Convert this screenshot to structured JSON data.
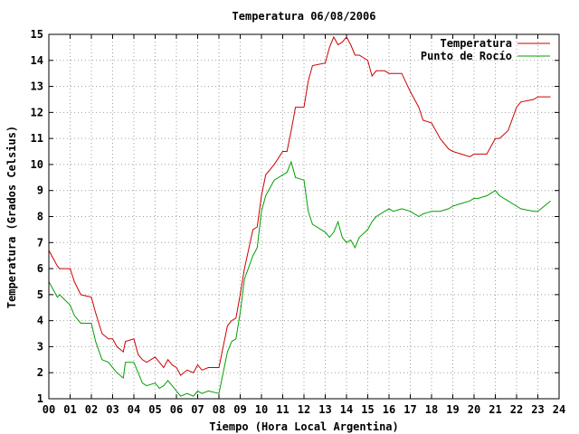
{
  "chart_data": {
    "type": "line",
    "title": "Temperatura 06/08/2006",
    "xlabel": "Tiempo (Hora Local Argentina)",
    "ylabel": "Temperatura (Grados Celsius)",
    "xlim": [
      0,
      24
    ],
    "ylim": [
      1,
      15
    ],
    "x_ticks": [
      0,
      1,
      2,
      3,
      4,
      5,
      6,
      7,
      8,
      9,
      10,
      11,
      12,
      13,
      14,
      15,
      16,
      17,
      18,
      19,
      20,
      21,
      22,
      23,
      24
    ],
    "x_tick_labels": [
      "00",
      "01",
      "02",
      "03",
      "04",
      "05",
      "06",
      "07",
      "08",
      "09",
      "10",
      "11",
      "12",
      "13",
      "14",
      "15",
      "16",
      "17",
      "18",
      "19",
      "20",
      "21",
      "22",
      "23",
      "24"
    ],
    "y_ticks": [
      1,
      2,
      3,
      4,
      5,
      6,
      7,
      8,
      9,
      10,
      11,
      12,
      13,
      14,
      15
    ],
    "grid": true,
    "legend_position": "top-right",
    "series": [
      {
        "name": "Temperatura",
        "color": "#cc0000",
        "x": [
          0.0,
          0.2,
          0.4,
          0.5,
          1.0,
          1.2,
          1.5,
          2.0,
          2.2,
          2.5,
          2.8,
          3.0,
          3.2,
          3.5,
          3.6,
          4.0,
          4.2,
          4.4,
          4.6,
          5.0,
          5.2,
          5.4,
          5.6,
          5.8,
          6.0,
          6.2,
          6.5,
          6.8,
          7.0,
          7.2,
          7.5,
          8.0,
          8.2,
          8.4,
          8.6,
          8.8,
          9.0,
          9.2,
          9.6,
          9.8,
          10.0,
          10.2,
          10.6,
          11.0,
          11.2,
          11.4,
          11.6,
          12.0,
          12.2,
          12.4,
          13.0,
          13.2,
          13.4,
          13.6,
          13.8,
          14.0,
          14.2,
          14.4,
          14.6,
          15.0,
          15.2,
          15.4,
          15.8,
          16.0,
          16.2,
          16.6,
          17.0,
          17.4,
          17.6,
          18.0,
          18.4,
          18.8,
          19.0,
          19.4,
          19.8,
          20.0,
          20.2,
          20.6,
          21.0,
          21.2,
          21.6,
          22.0,
          22.2,
          22.8,
          23.0,
          23.6
        ],
        "y": [
          6.7,
          6.4,
          6.1,
          6.0,
          6.0,
          5.5,
          5.0,
          4.9,
          4.3,
          3.5,
          3.3,
          3.3,
          3.0,
          2.8,
          3.2,
          3.3,
          2.7,
          2.5,
          2.4,
          2.6,
          2.4,
          2.2,
          2.5,
          2.3,
          2.2,
          1.9,
          2.1,
          2.0,
          2.3,
          2.1,
          2.2,
          2.2,
          3.0,
          3.8,
          4.0,
          4.1,
          5.0,
          6.0,
          7.5,
          7.6,
          8.8,
          9.6,
          10.0,
          10.5,
          10.5,
          11.3,
          12.2,
          12.2,
          13.2,
          13.8,
          13.9,
          14.5,
          14.9,
          14.6,
          14.7,
          14.9,
          14.6,
          14.2,
          14.2,
          14.0,
          13.4,
          13.6,
          13.6,
          13.5,
          13.5,
          13.5,
          12.8,
          12.2,
          11.7,
          11.6,
          11.0,
          10.6,
          10.5,
          10.4,
          10.3,
          10.4,
          10.4,
          10.4,
          11.0,
          11.0,
          11.3,
          12.2,
          12.4,
          12.5,
          12.6,
          12.6
        ]
      },
      {
        "name": "Punto de Rocío",
        "color": "#00a000",
        "x": [
          0.0,
          0.2,
          0.4,
          0.5,
          1.0,
          1.2,
          1.5,
          2.0,
          2.2,
          2.5,
          2.8,
          3.0,
          3.2,
          3.5,
          3.6,
          4.0,
          4.2,
          4.4,
          4.6,
          5.0,
          5.2,
          5.4,
          5.6,
          5.8,
          6.0,
          6.2,
          6.5,
          6.8,
          7.0,
          7.2,
          7.5,
          8.0,
          8.2,
          8.4,
          8.6,
          8.8,
          9.0,
          9.2,
          9.6,
          9.8,
          10.0,
          10.2,
          10.6,
          11.0,
          11.2,
          11.4,
          11.6,
          12.0,
          12.2,
          12.4,
          13.0,
          13.2,
          13.4,
          13.6,
          13.8,
          14.0,
          14.2,
          14.4,
          14.6,
          15.0,
          15.2,
          15.4,
          15.8,
          16.0,
          16.2,
          16.6,
          17.0,
          17.4,
          17.6,
          18.0,
          18.4,
          18.8,
          19.0,
          19.4,
          19.8,
          20.0,
          20.2,
          20.6,
          21.0,
          21.2,
          21.6,
          22.0,
          22.2,
          22.8,
          23.0,
          23.6
        ],
        "y": [
          5.5,
          5.2,
          4.9,
          5.0,
          4.6,
          4.2,
          3.9,
          3.9,
          3.2,
          2.5,
          2.4,
          2.2,
          2.0,
          1.8,
          2.4,
          2.4,
          2.0,
          1.6,
          1.5,
          1.6,
          1.4,
          1.5,
          1.7,
          1.5,
          1.3,
          1.1,
          1.2,
          1.1,
          1.3,
          1.2,
          1.3,
          1.2,
          2.0,
          2.8,
          3.2,
          3.3,
          4.3,
          5.6,
          6.5,
          6.8,
          8.2,
          8.8,
          9.4,
          9.6,
          9.7,
          10.1,
          9.5,
          9.4,
          8.2,
          7.7,
          7.4,
          7.2,
          7.4,
          7.8,
          7.2,
          7.0,
          7.1,
          6.8,
          7.2,
          7.5,
          7.8,
          8.0,
          8.2,
          8.3,
          8.2,
          8.3,
          8.2,
          8.0,
          8.1,
          8.2,
          8.2,
          8.3,
          8.4,
          8.5,
          8.6,
          8.7,
          8.7,
          8.8,
          9.0,
          8.8,
          8.6,
          8.4,
          8.3,
          8.2,
          8.2,
          8.6
        ]
      }
    ]
  }
}
